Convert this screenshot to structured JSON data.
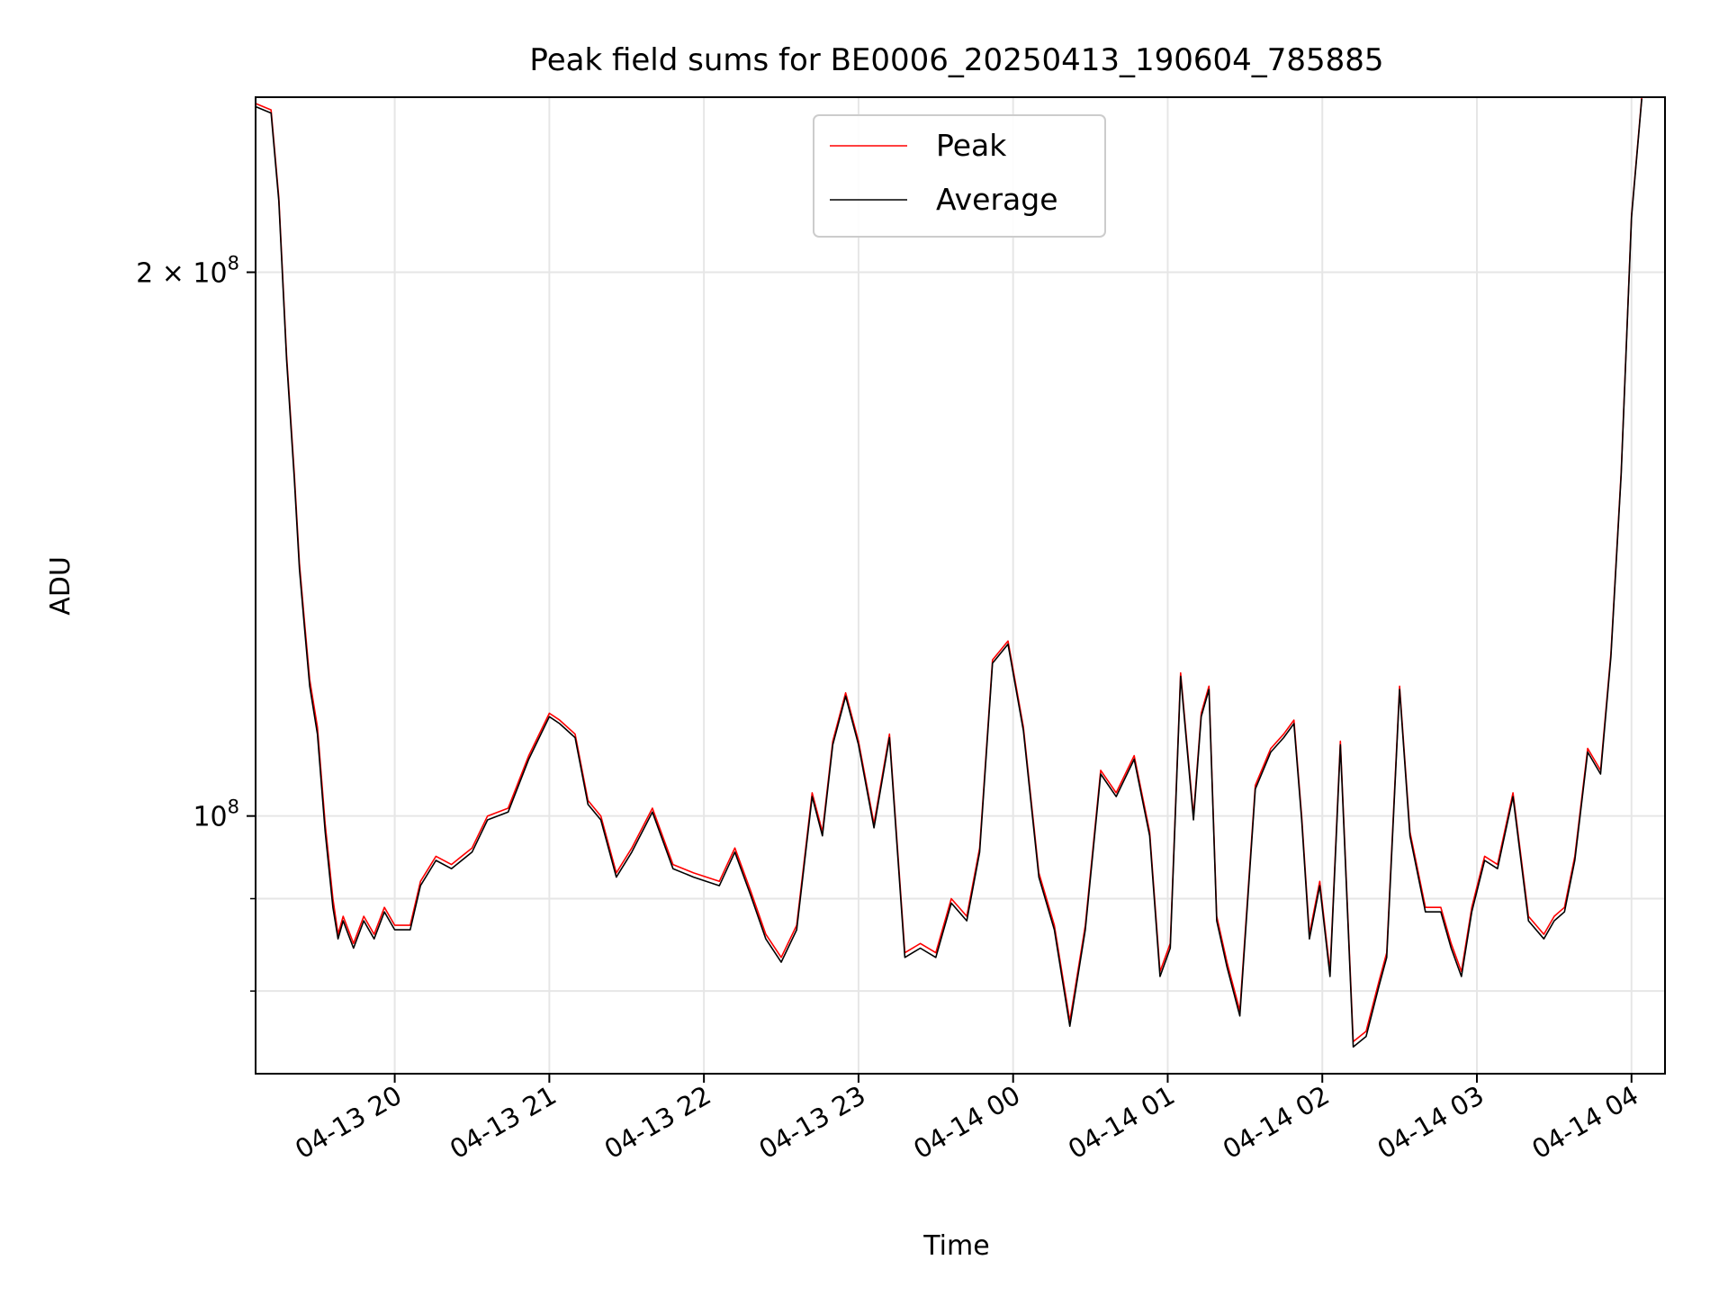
{
  "chart_data": {
    "type": "line",
    "title": "Peak field sums for BE0006_20250413_190604_785885",
    "xlabel": "Time",
    "ylabel": "ADU",
    "yscale": "log",
    "xlim": [
      "2025-04-13 19:06",
      "2025-04-14 04:13"
    ],
    "ylim": [
      72000000,
      250000000
    ],
    "grid": true,
    "legend_position": "upper center",
    "x_ticks": [
      "04-13 20",
      "04-13 21",
      "04-13 22",
      "04-13 23",
      "04-14 00",
      "04-14 01",
      "04-14 02",
      "04-14 03",
      "04-14 04"
    ],
    "y_ticks": [
      {
        "value": 200000000,
        "label": "2 × 10^8",
        "base": "2 × 10",
        "exp": "8"
      },
      {
        "value": 100000000,
        "label": "10^8",
        "base": "10",
        "exp": "8"
      }
    ],
    "y_minor_ticks": [
      90000000,
      80000000
    ],
    "series_colors": {
      "Peak": "#ff0000",
      "Average": "#000000"
    },
    "x": [
      "2025-04-13 19:06",
      "2025-04-13 19:12",
      "2025-04-13 19:15",
      "2025-04-13 19:18",
      "2025-04-13 19:21",
      "2025-04-13 19:23",
      "2025-04-13 19:25",
      "2025-04-13 19:27",
      "2025-04-13 19:30",
      "2025-04-13 19:33",
      "2025-04-13 19:36",
      "2025-04-13 19:38",
      "2025-04-13 19:40",
      "2025-04-13 19:44",
      "2025-04-13 19:48",
      "2025-04-13 19:52",
      "2025-04-13 19:56",
      "2025-04-13 20:00",
      "2025-04-13 20:06",
      "2025-04-13 20:10",
      "2025-04-13 20:16",
      "2025-04-13 20:22",
      "2025-04-13 20:30",
      "2025-04-13 20:36",
      "2025-04-13 20:44",
      "2025-04-13 20:52",
      "2025-04-13 21:00",
      "2025-04-13 21:04",
      "2025-04-13 21:10",
      "2025-04-13 21:15",
      "2025-04-13 21:20",
      "2025-04-13 21:26",
      "2025-04-13 21:32",
      "2025-04-13 21:40",
      "2025-04-13 21:48",
      "2025-04-13 21:56",
      "2025-04-13 22:06",
      "2025-04-13 22:12",
      "2025-04-13 22:18",
      "2025-04-13 22:24",
      "2025-04-13 22:30",
      "2025-04-13 22:36",
      "2025-04-13 22:42",
      "2025-04-13 22:46",
      "2025-04-13 22:50",
      "2025-04-13 22:55",
      "2025-04-13 23:00",
      "2025-04-13 23:06",
      "2025-04-13 23:12",
      "2025-04-13 23:18",
      "2025-04-13 23:24",
      "2025-04-13 23:30",
      "2025-04-13 23:36",
      "2025-04-13 23:42",
      "2025-04-13 23:47",
      "2025-04-13 23:52",
      "2025-04-13 23:58",
      "2025-04-14 00:04",
      "2025-04-14 00:10",
      "2025-04-14 00:16",
      "2025-04-14 00:22",
      "2025-04-14 00:28",
      "2025-04-14 00:34",
      "2025-04-14 00:40",
      "2025-04-14 00:47",
      "2025-04-14 00:53",
      "2025-04-14 00:57",
      "2025-04-14 01:01",
      "2025-04-14 01:05",
      "2025-04-14 01:10",
      "2025-04-14 01:13",
      "2025-04-14 01:16",
      "2025-04-14 01:19",
      "2025-04-14 01:23",
      "2025-04-14 01:28",
      "2025-04-14 01:34",
      "2025-04-14 01:40",
      "2025-04-14 01:45",
      "2025-04-14 01:49",
      "2025-04-14 01:52",
      "2025-04-14 01:55",
      "2025-04-14 01:59",
      "2025-04-14 02:03",
      "2025-04-14 02:07",
      "2025-04-14 02:12",
      "2025-04-14 02:17",
      "2025-04-14 02:22",
      "2025-04-14 02:25",
      "2025-04-14 02:30",
      "2025-04-14 02:34",
      "2025-04-14 02:40",
      "2025-04-14 02:46",
      "2025-04-14 02:50",
      "2025-04-14 02:54",
      "2025-04-14 02:58",
      "2025-04-14 03:03",
      "2025-04-14 03:08",
      "2025-04-14 03:14",
      "2025-04-14 03:20",
      "2025-04-14 03:26",
      "2025-04-14 03:30",
      "2025-04-14 03:34",
      "2025-04-14 03:38",
      "2025-04-14 03:43",
      "2025-04-14 03:48",
      "2025-04-14 03:52",
      "2025-04-14 03:56",
      "2025-04-14 04:00",
      "2025-04-14 04:04"
    ],
    "series": [
      {
        "name": "Peak",
        "values": [
          248000000,
          246000000,
          220000000,
          180000000,
          155000000,
          138000000,
          128000000,
          119000000,
          112000000,
          99000000,
          90000000,
          86000000,
          88000000,
          85000000,
          88000000,
          86000000,
          89000000,
          87000000,
          87000000,
          92000000,
          95000000,
          94000000,
          96000000,
          100000000,
          101000000,
          108000000,
          114000000,
          113000000,
          111000000,
          102000000,
          100000000,
          93000000,
          96000000,
          101000000,
          94000000,
          93000000,
          92000000,
          96000000,
          91000000,
          86000000,
          83500000,
          87000000,
          103000000,
          98000000,
          110000000,
          117000000,
          110000000,
          99000000,
          111000000,
          84000000,
          85000000,
          84000000,
          90000000,
          88000000,
          96000000,
          122000000,
          125000000,
          112000000,
          93000000,
          87000000,
          77000000,
          87000000,
          106000000,
          103000000,
          108000000,
          98000000,
          82000000,
          85000000,
          120000000,
          100000000,
          114000000,
          118000000,
          88000000,
          83000000,
          78000000,
          104000000,
          109000000,
          111000000,
          113000000,
          100000000,
          86000000,
          92000000,
          82000000,
          110000000,
          75000000,
          76000000,
          81000000,
          84000000,
          118000000,
          98000000,
          89000000,
          89000000,
          85000000,
          82000000,
          89000000,
          95000000,
          94000000,
          103000000,
          88000000,
          86000000,
          88000000,
          89000000,
          95000000,
          109000000,
          106000000,
          123000000,
          155000000,
          215000000,
          250000000
        ]
      },
      {
        "name": "Average",
        "values": [
          247000000,
          245000000,
          219000000,
          179000000,
          154000000,
          137000000,
          127000000,
          118000000,
          111000000,
          98000000,
          89000000,
          85500000,
          87500000,
          84500000,
          87500000,
          85500000,
          88500000,
          86500000,
          86500000,
          91500000,
          94500000,
          93500000,
          95500000,
          99500000,
          100500000,
          107500000,
          113500000,
          112500000,
          110500000,
          101500000,
          99500000,
          92500000,
          95500000,
          100500000,
          93500000,
          92500000,
          91500000,
          95500000,
          90500000,
          85500000,
          83000000,
          86500000,
          102500000,
          97500000,
          109500000,
          116500000,
          109500000,
          98500000,
          110500000,
          83500000,
          84500000,
          83500000,
          89500000,
          87500000,
          95500000,
          121500000,
          124500000,
          111500000,
          92500000,
          86500000,
          76500000,
          86500000,
          105500000,
          102500000,
          107500000,
          97500000,
          81500000,
          84500000,
          119500000,
          99500000,
          113500000,
          117500000,
          87500000,
          82500000,
          77500000,
          103500000,
          108500000,
          110500000,
          112500000,
          99500000,
          85500000,
          91500000,
          81500000,
          109500000,
          74500000,
          75500000,
          80500000,
          83500000,
          117500000,
          97500000,
          88500000,
          88500000,
          84500000,
          81500000,
          88500000,
          94500000,
          93500000,
          102500000,
          87500000,
          85500000,
          87500000,
          88500000,
          94500000,
          108500000,
          105500000,
          122500000,
          154500000,
          214500000,
          249500000
        ]
      }
    ]
  }
}
